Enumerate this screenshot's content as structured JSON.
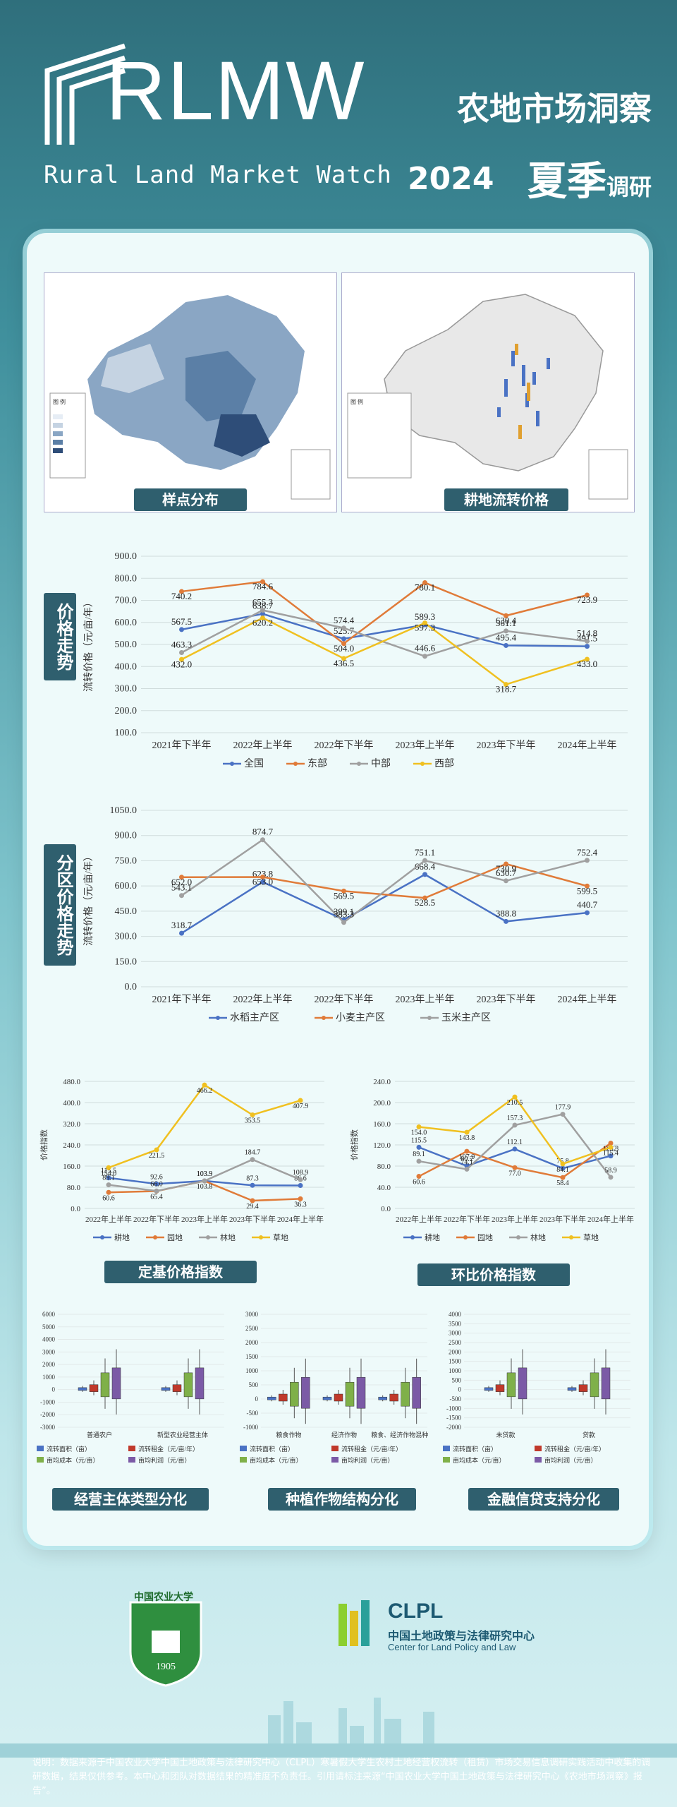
{
  "header": {
    "brand": "RLMW",
    "brand_sub": "Rural Land Market Watch",
    "title": "农地市场洞察",
    "year": "2024",
    "season": "夏季",
    "season_suffix": "调研"
  },
  "maps": {
    "left_label": "样点分布",
    "right_label": "耕地流转价格"
  },
  "price_trend": {
    "side_label": "价格走势",
    "chart_data": {
      "type": "line",
      "categories": [
        "2021年下半年",
        "2022年上半年",
        "2022年下半年",
        "2023年上半年",
        "2023年下半年",
        "2024年上半年"
      ],
      "ylabel": "流转价格（元/亩/年）",
      "ylim": [
        100,
        900
      ],
      "yticks": [
        "100.0",
        "200.0",
        "300.0",
        "400.0",
        "500.0",
        "600.0",
        "700.0",
        "800.0",
        "900.0"
      ],
      "series": [
        {
          "name": "全国",
          "color": "#4a72c4",
          "values": [
            567.5,
            638.7,
            525.7,
            589.3,
            495.4,
            491.5
          ]
        },
        {
          "name": "东部",
          "color": "#e07b39",
          "values": [
            740.2,
            784.6,
            504.0,
            780.1,
            630.4,
            723.9
          ]
        },
        {
          "name": "中部",
          "color": "#a0a0a0",
          "values": [
            463.3,
            655.3,
            574.4,
            446.6,
            561.1,
            514.8
          ]
        },
        {
          "name": "西部",
          "color": "#f0c020",
          "values": [
            432.0,
            620.2,
            436.5,
            597.3,
            318.7,
            433.0
          ]
        }
      ]
    }
  },
  "zone_trend": {
    "side_label": "分区价格走势",
    "chart_data": {
      "type": "line",
      "categories": [
        "2021年下半年",
        "2022年上半年",
        "2022年下半年",
        "2023年上半年",
        "2023年下半年",
        "2024年上半年"
      ],
      "ylabel": "流转价格（元/亩/年）",
      "ylim": [
        0,
        1050
      ],
      "yticks": [
        "0.0",
        "150.0",
        "300.0",
        "450.0",
        "600.0",
        "750.0",
        "900.0",
        "1050.0"
      ],
      "series": [
        {
          "name": "水稻主产区",
          "color": "#4a72c4",
          "values": [
            318.7,
            623.8,
            399.1,
            668.4,
            388.8,
            440.7
          ]
        },
        {
          "name": "小麦主产区",
          "color": "#e07b39",
          "values": [
            652.0,
            653.0,
            569.5,
            528.5,
            730.9,
            599.5
          ]
        },
        {
          "name": "玉米主产区",
          "color": "#a0a0a0",
          "values": [
            543.1,
            874.7,
            383.3,
            751.1,
            630.7,
            752.4
          ]
        }
      ]
    }
  },
  "fixed_index": {
    "label": "定基价格指数",
    "chart_data": {
      "type": "line",
      "categories": [
        "2022年上半年",
        "2022年下半年",
        "2023年上半年",
        "2023年下半年",
        "2024年上半年"
      ],
      "ylabel": "价格指数",
      "ylim": [
        0,
        480
      ],
      "yticks": [
        "0.0",
        "80.0",
        "160.0",
        "240.0",
        "320.0",
        "400.0",
        "480.0"
      ],
      "series": [
        {
          "name": "耕地",
          "color": "#4a72c4",
          "values": [
            115.5,
            92.6,
            103.9,
            87.3,
            86.6
          ]
        },
        {
          "name": "园地",
          "color": "#e07b39",
          "values": [
            60.6,
            65.4,
            103.8,
            29.4,
            36.3
          ]
        },
        {
          "name": "林地",
          "color": "#a0a0a0",
          "values": [
            89.1,
            66.0,
            103.9,
            184.7,
            108.9
          ]
        },
        {
          "name": "草地",
          "color": "#f0c020",
          "values": [
            154.0,
            221.5,
            466.2,
            353.5,
            407.9
          ]
        }
      ]
    }
  },
  "chain_index": {
    "label": "环比价格指数",
    "chart_data": {
      "type": "line",
      "categories": [
        "2022年上半年",
        "2022年下半年",
        "2023年上半年",
        "2023年下半年",
        "2024年上半年"
      ],
      "ylabel": "价格指数",
      "ylim": [
        0,
        240
      ],
      "yticks": [
        "0.0",
        "40.0",
        "80.0",
        "120.0",
        "160.0",
        "200.0",
        "240.0"
      ],
      "series": [
        {
          "name": "耕地",
          "color": "#4a72c4",
          "values": [
            115.5,
            80.2,
            112.1,
            75.8,
            99.2
          ]
        },
        {
          "name": "园地",
          "color": "#e07b39",
          "values": [
            60.6,
            107.9,
            77.0,
            58.4,
            123.3
          ]
        },
        {
          "name": "林地",
          "color": "#a0a0a0",
          "values": [
            89.1,
            74.1,
            157.3,
            177.9,
            58.9
          ]
        },
        {
          "name": "草地",
          "color": "#f0c020",
          "values": [
            154.0,
            143.8,
            210.5,
            84.1,
            115.4
          ]
        }
      ]
    }
  },
  "box_panels": [
    {
      "label": "经营主体类型分化",
      "groups": [
        "普通农户",
        "新型农业经营主体"
      ],
      "yticks": [
        "6000",
        "5000",
        "4000",
        "3000",
        "2000",
        "1000",
        "0",
        "-1000",
        "-2000",
        "-3000"
      ],
      "legend": [
        "流转面积（亩）",
        "流转租金（元/亩/年）",
        "亩均成本（元/亩）",
        "亩均利润（元/亩）"
      ]
    },
    {
      "label": "种植作物结构分化",
      "groups": [
        "粮食作物",
        "经济作物",
        "粮食、经济作物混种"
      ],
      "yticks": [
        "3000",
        "2500",
        "2000",
        "1500",
        "1000",
        "500",
        "0",
        "-500",
        "-1000"
      ],
      "legend": [
        "流转面积（亩）",
        "流转租金（元/亩/年）",
        "亩均成本（元/亩）",
        "亩均利润（元/亩）"
      ]
    },
    {
      "label": "金融信贷支持分化",
      "groups": [
        "未贷款",
        "贷款"
      ],
      "yticks": [
        "4000",
        "3500",
        "3000",
        "2500",
        "2000",
        "1500",
        "1000",
        "500",
        "0",
        "-500",
        "-1000",
        "-1500",
        "-2000"
      ],
      "legend": [
        "流转面积（亩）",
        "流转租金（元/亩/年）",
        "亩均成本（元/亩）",
        "亩均利润（元/亩）"
      ]
    }
  ],
  "footer": {
    "clpl": "CLPL",
    "clpl_cn": "中国土地政策与法律研究中心",
    "clpl_en": "Center for Land Policy and Law",
    "cau": "中国农业大学",
    "note": "说明：数据来源于中国农业大学中国土地政策与法律研究中心（CLPL）寒暑假大学生农村土地经营权流转（租赁）市场交易信息调研实践活动中收集的调研数据，结果仅供参考。本中心和团队对数据结果的精准度不负责任。引用请标注来源“中国农业大学中国土地政策与法律研究中心《农地市场洞察》报告”。"
  }
}
